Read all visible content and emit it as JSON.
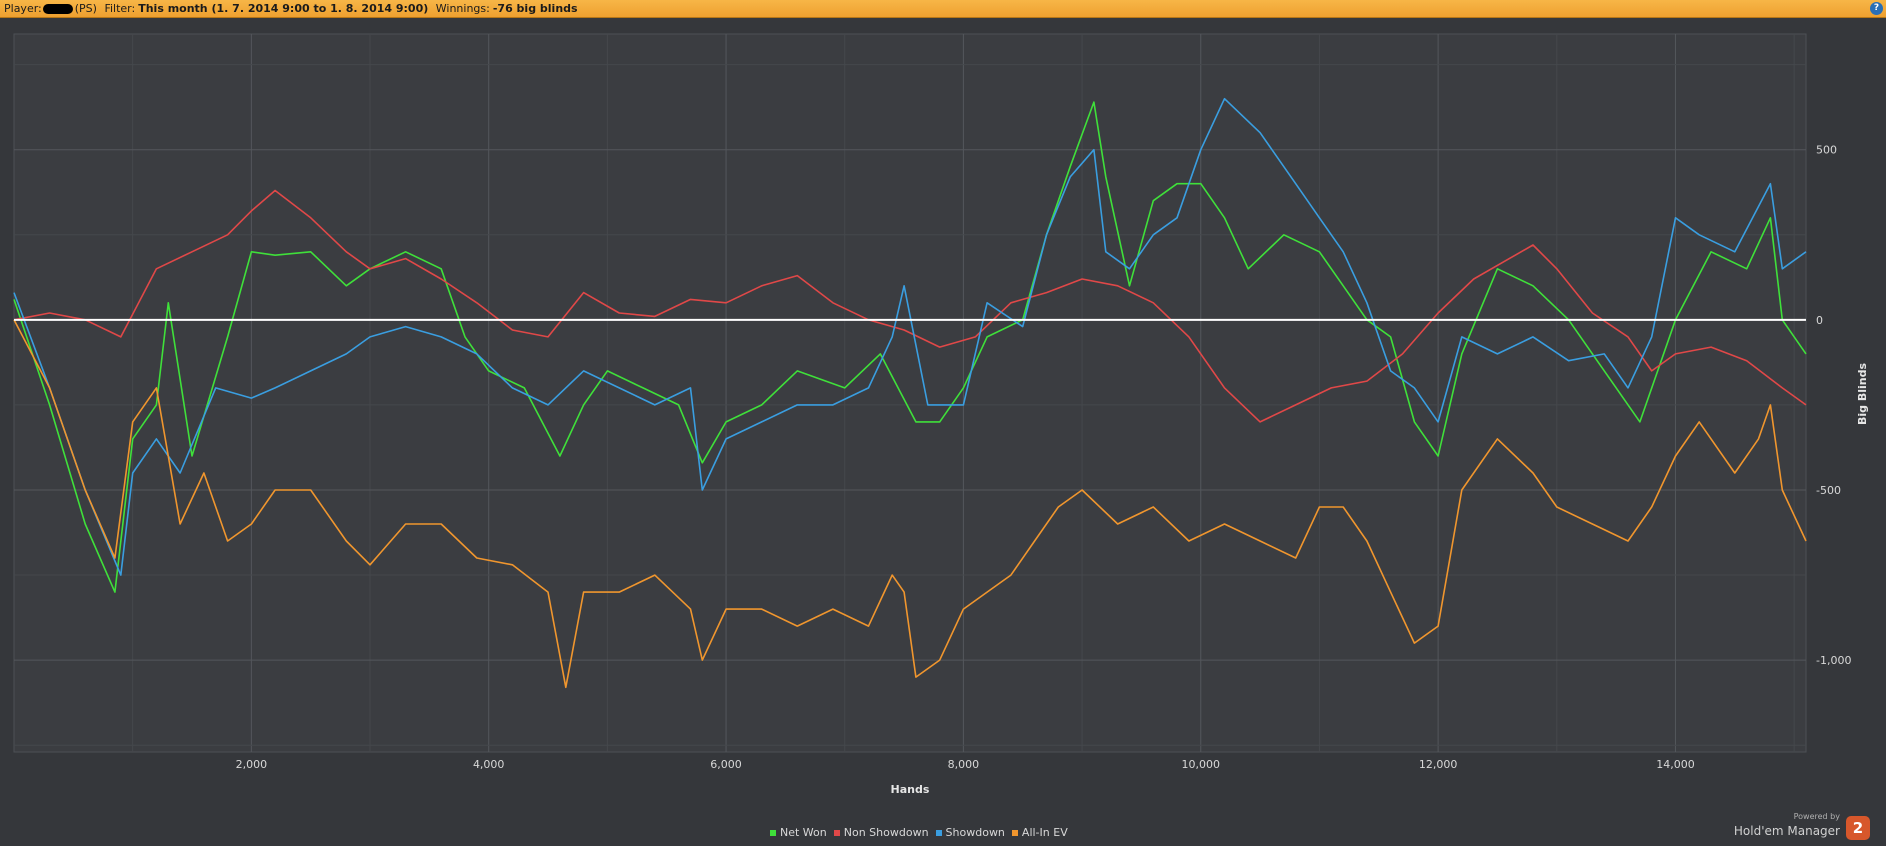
{
  "header": {
    "player_label": "Player:",
    "player_site": "(PS)",
    "filter_label": "Filter:",
    "filter_value": "This month (1. 7. 2014 9:00 to 1. 8. 2014 9:00)",
    "winnings_label": "Winnings:",
    "winnings_value": "-76 big blinds",
    "help_icon": "?"
  },
  "branding": {
    "powered_by": "Powered by",
    "product": "Hold'em Manager",
    "logo_text": "2"
  },
  "chart_data": {
    "type": "line",
    "title": "",
    "xlabel": "Hands",
    "ylabel": "Big Blinds",
    "xlim": [
      0,
      15100
    ],
    "ylim": [
      -1270,
      840
    ],
    "xticks": [
      2000,
      4000,
      6000,
      8000,
      10000,
      12000,
      14000
    ],
    "xtick_labels": [
      "2,000",
      "4,000",
      "6,000",
      "8,000",
      "10,000",
      "12,000",
      "14,000"
    ],
    "yticks": [
      500,
      0,
      -500,
      -1000
    ],
    "ytick_labels": [
      "500",
      "0",
      "-500",
      "-1,000"
    ],
    "grid": true,
    "legend_position": "bottom",
    "zero_line_color": "#ffffff",
    "series": [
      {
        "name": "Net Won",
        "color": "#3fe03a",
        "x": [
          0,
          300,
          600,
          850,
          1000,
          1200,
          1300,
          1500,
          1800,
          2000,
          2200,
          2500,
          2800,
          3000,
          3300,
          3600,
          3800,
          4000,
          4300,
          4600,
          4800,
          5000,
          5300,
          5600,
          5800,
          6000,
          6300,
          6600,
          7000,
          7300,
          7600,
          7800,
          8000,
          8200,
          8500,
          8700,
          8900,
          9100,
          9200,
          9400,
          9600,
          9800,
          10000,
          10200,
          10400,
          10700,
          11000,
          11200,
          11400,
          11600,
          11800,
          12000,
          12200,
          12500,
          12800,
          13100,
          13400,
          13700,
          14000,
          14300,
          14600,
          14800,
          14900,
          15100
        ],
        "y": [
          60,
          -250,
          -600,
          -800,
          -350,
          -250,
          50,
          -400,
          -50,
          200,
          190,
          200,
          100,
          150,
          200,
          150,
          -50,
          -150,
          -200,
          -400,
          -250,
          -150,
          -200,
          -250,
          -420,
          -300,
          -250,
          -150,
          -200,
          -100,
          -300,
          -300,
          -200,
          -50,
          0,
          250,
          450,
          640,
          420,
          100,
          350,
          400,
          400,
          300,
          150,
          250,
          200,
          100,
          0,
          -50,
          -300,
          -400,
          -100,
          150,
          100,
          0,
          -150,
          -300,
          0,
          200,
          150,
          300,
          0,
          -100
        ]
      },
      {
        "name": "Non Showdown",
        "color": "#e04848",
        "x": [
          0,
          300,
          600,
          900,
          1200,
          1500,
          1800,
          2000,
          2200,
          2500,
          2800,
          3000,
          3300,
          3600,
          3900,
          4200,
          4500,
          4800,
          5100,
          5400,
          5700,
          6000,
          6300,
          6600,
          6900,
          7200,
          7500,
          7800,
          8100,
          8400,
          8700,
          9000,
          9300,
          9600,
          9900,
          10200,
          10500,
          10800,
          11100,
          11400,
          11700,
          12000,
          12300,
          12600,
          12800,
          13000,
          13300,
          13600,
          13800,
          14000,
          14300,
          14600,
          14900,
          15100
        ],
        "y": [
          0,
          20,
          0,
          -50,
          150,
          200,
          250,
          320,
          380,
          300,
          200,
          150,
          180,
          120,
          50,
          -30,
          -50,
          80,
          20,
          10,
          60,
          50,
          100,
          130,
          50,
          0,
          -30,
          -80,
          -50,
          50,
          80,
          120,
          100,
          50,
          -50,
          -200,
          -300,
          -250,
          -200,
          -180,
          -100,
          20,
          120,
          180,
          220,
          150,
          20,
          -50,
          -150,
          -100,
          -80,
          -120,
          -200,
          -250
        ]
      },
      {
        "name": "Showdown",
        "color": "#3a9ee0",
        "x": [
          0,
          300,
          600,
          900,
          1000,
          1200,
          1400,
          1700,
          2000,
          2200,
          2500,
          2800,
          3000,
          3300,
          3600,
          3900,
          4200,
          4500,
          4800,
          5100,
          5400,
          5700,
          5800,
          6000,
          6300,
          6600,
          6900,
          7200,
          7400,
          7500,
          7700,
          8000,
          8200,
          8500,
          8700,
          8900,
          9100,
          9200,
          9400,
          9600,
          9800,
          10000,
          10200,
          10500,
          10800,
          11000,
          11200,
          11400,
          11600,
          11800,
          12000,
          12200,
          12500,
          12800,
          13100,
          13400,
          13600,
          13800,
          14000,
          14200,
          14500,
          14800,
          14900,
          15100
        ],
        "y": [
          80,
          -200,
          -500,
          -750,
          -450,
          -350,
          -450,
          -200,
          -230,
          -200,
          -150,
          -100,
          -50,
          -20,
          -50,
          -100,
          -200,
          -250,
          -150,
          -200,
          -250,
          -200,
          -500,
          -350,
          -300,
          -250,
          -250,
          -200,
          -50,
          100,
          -250,
          -250,
          50,
          -20,
          250,
          420,
          500,
          200,
          150,
          250,
          300,
          500,
          650,
          550,
          400,
          300,
          200,
          50,
          -150,
          -200,
          -300,
          -50,
          -100,
          -50,
          -120,
          -100,
          -200,
          -50,
          300,
          250,
          200,
          400,
          150,
          200
        ]
      },
      {
        "name": "All-In EV",
        "color": "#f0962e",
        "x": [
          0,
          300,
          600,
          850,
          1000,
          1200,
          1400,
          1600,
          1800,
          2000,
          2200,
          2500,
          2800,
          3000,
          3300,
          3600,
          3900,
          4200,
          4500,
          4650,
          4800,
          5100,
          5400,
          5700,
          5800,
          6000,
          6300,
          6600,
          6900,
          7200,
          7400,
          7500,
          7600,
          7800,
          8000,
          8200,
          8400,
          8600,
          8800,
          9000,
          9300,
          9600,
          9900,
          10200,
          10500,
          10800,
          11000,
          11200,
          11400,
          11600,
          11800,
          12000,
          12200,
          12500,
          12800,
          13000,
          13300,
          13600,
          13800,
          14000,
          14200,
          14500,
          14700,
          14800,
          14900,
          15100
        ],
        "y": [
          0,
          -200,
          -500,
          -700,
          -300,
          -200,
          -600,
          -450,
          -650,
          -600,
          -500,
          -500,
          -650,
          -720,
          -600,
          -600,
          -700,
          -720,
          -800,
          -1080,
          -800,
          -800,
          -750,
          -850,
          -1000,
          -850,
          -850,
          -900,
          -850,
          -900,
          -750,
          -800,
          -1050,
          -1000,
          -850,
          -800,
          -750,
          -650,
          -550,
          -500,
          -600,
          -550,
          -650,
          -600,
          -650,
          -700,
          -550,
          -550,
          -650,
          -800,
          -950,
          -900,
          -500,
          -350,
          -450,
          -550,
          -600,
          -650,
          -550,
          -400,
          -300,
          -450,
          -350,
          -250,
          -500,
          -650
        ]
      }
    ]
  }
}
